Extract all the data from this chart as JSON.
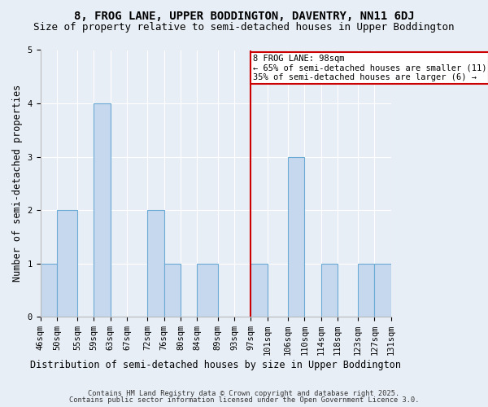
{
  "title": "8, FROG LANE, UPPER BODDINGTON, DAVENTRY, NN11 6DJ",
  "subtitle": "Size of property relative to semi-detached houses in Upper Boddington",
  "xlabel": "Distribution of semi-detached houses by size in Upper Boddington",
  "ylabel": "Number of semi-detached properties",
  "bin_edges": [
    46,
    50,
    55,
    59,
    63,
    67,
    72,
    76,
    80,
    84,
    89,
    93,
    97,
    101,
    106,
    110,
    114,
    118,
    123,
    127,
    131
  ],
  "bin_counts": [
    1,
    2,
    0,
    4,
    0,
    0,
    2,
    1,
    0,
    1,
    0,
    0,
    1,
    0,
    3,
    0,
    1,
    0,
    1,
    1
  ],
  "tick_labels": [
    "46sqm",
    "50sqm",
    "55sqm",
    "59sqm",
    "63sqm",
    "67sqm",
    "72sqm",
    "76sqm",
    "80sqm",
    "84sqm",
    "89sqm",
    "93sqm",
    "97sqm",
    "101sqm",
    "106sqm",
    "110sqm",
    "114sqm",
    "118sqm",
    "123sqm",
    "127sqm",
    "131sqm"
  ],
  "bar_color": "#c5d8ee",
  "bar_edgecolor": "#6aaad4",
  "vline_x": 97,
  "vline_color": "#cc0000",
  "annotation_text": "8 FROG LANE: 98sqm\n← 65% of semi-detached houses are smaller (11)\n35% of semi-detached houses are larger (6) →",
  "annotation_box_edgecolor": "#cc0000",
  "annotation_box_facecolor": "#ffffff",
  "ylim": [
    0,
    5
  ],
  "yticks": [
    0,
    1,
    2,
    3,
    4,
    5
  ],
  "footer_line1": "Contains HM Land Registry data © Crown copyright and database right 2025.",
  "footer_line2": "Contains public sector information licensed under the Open Government Licence 3.0.",
  "bg_color": "#e8eef6",
  "title_fontsize": 10,
  "subtitle_fontsize": 9,
  "tick_fontsize": 7.5,
  "ylabel_fontsize": 8.5,
  "xlabel_fontsize": 8.5
}
